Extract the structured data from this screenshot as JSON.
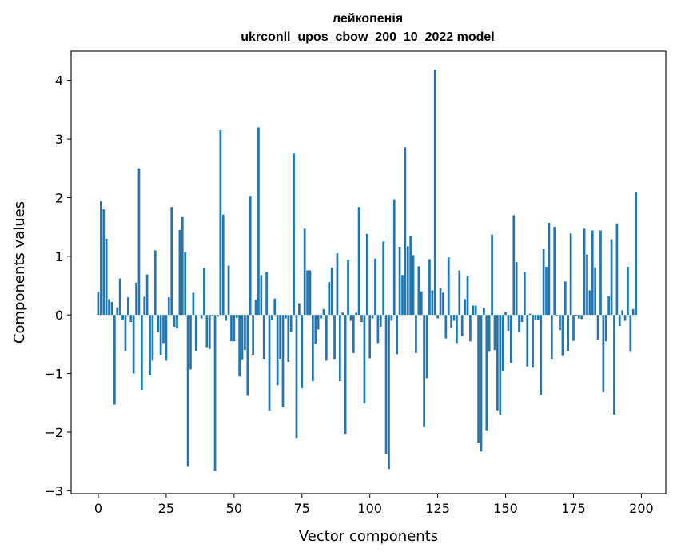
{
  "chart_data": {
    "type": "bar",
    "title_line1": "лейкопенія",
    "title_line2": "ukrconll_upos_cbow_200_10_2022 model",
    "xlabel": "Vector components",
    "ylabel": "Components values",
    "xlim": [
      -10,
      209
    ],
    "ylim": [
      -3.05,
      4.5
    ],
    "xticks": [
      0,
      25,
      50,
      75,
      100,
      125,
      150,
      175,
      200
    ],
    "xtick_labels": [
      "0",
      "25",
      "50",
      "75",
      "100",
      "125",
      "150",
      "175",
      "200"
    ],
    "yticks": [
      -3,
      -2,
      -1,
      0,
      1,
      2,
      3,
      4
    ],
    "ytick_labels": [
      "−3",
      "−2",
      "−1",
      "0",
      "1",
      "2",
      "3",
      "4"
    ],
    "bar_color": "#1f77b4",
    "values": [
      0.4,
      1.95,
      1.8,
      1.3,
      0.27,
      0.22,
      -1.53,
      0.13,
      0.62,
      -0.08,
      -0.62,
      0.3,
      -0.12,
      -1.0,
      0.55,
      2.5,
      -1.28,
      0.31,
      0.69,
      -1.03,
      -0.78,
      1.1,
      -0.3,
      -0.68,
      -0.48,
      -0.78,
      0.3,
      1.84,
      -0.2,
      -0.23,
      1.45,
      1.67,
      1.07,
      -2.58,
      -0.93,
      0.38,
      -0.62,
      0.0,
      -0.06,
      0.8,
      -0.55,
      -0.58,
      -0.02,
      -2.66,
      -0.03,
      3.15,
      1.71,
      -0.1,
      0.84,
      -0.45,
      -0.45,
      -0.05,
      -1.05,
      -0.77,
      -0.6,
      -1.38,
      2.03,
      -0.68,
      0.26,
      3.2,
      0.68,
      -0.76,
      0.73,
      -1.64,
      -0.08,
      0.28,
      -1.2,
      -0.76,
      -1.58,
      -0.06,
      -0.8,
      -0.29,
      2.75,
      -2.1,
      0.2,
      -1.25,
      1.47,
      0.76,
      0.76,
      -1.13,
      -0.49,
      -0.25,
      -0.06,
      0.1,
      -0.78,
      0.56,
      0.81,
      -0.76,
      1.05,
      -1.13,
      0.04,
      -2.03,
      0.94,
      -0.1,
      -0.65,
      0.04,
      1.84,
      -0.12,
      -1.51,
      1.38,
      -0.74,
      -0.06,
      0.96,
      -0.48,
      -0.2,
      1.25,
      -2.37,
      -2.63,
      -0.1,
      1.97,
      -0.67,
      1.16,
      0.68,
      2.86,
      1.17,
      1.34,
      1.02,
      -0.65,
      0.83,
      0.4,
      -1.91,
      -1.08,
      0.95,
      0.42,
      4.18,
      -0.06,
      0.46,
      0.38,
      -0.4,
      0.98,
      -0.22,
      -0.1,
      -0.48,
      0.76,
      -0.36,
      0.27,
      0.66,
      -0.45,
      0.16,
      0.16,
      -2.18,
      -2.33,
      0.12,
      -1.97,
      -0.63,
      1.37,
      -0.6,
      -1.63,
      -1.7,
      -0.95,
      0.05,
      -0.27,
      -0.82,
      1.7,
      0.9,
      -0.3,
      -0.12,
      0.73,
      -0.88,
      0.02,
      -0.9,
      -0.08,
      -0.08,
      -1.36,
      1.12,
      0.82,
      1.57,
      -0.76,
      1.5,
      -0.02,
      -0.26,
      -0.7,
      0.57,
      -0.61,
      1.39,
      -0.44,
      -0.02,
      -0.06,
      -0.07,
      1.47,
      1.03,
      0.42,
      1.44,
      0.81,
      -0.42,
      1.44,
      -1.32,
      -0.45,
      0.32,
      1.29,
      -1.7,
      1.56,
      -0.19,
      0.08,
      -0.1,
      0.82,
      -0.63,
      0.1,
      2.1
    ]
  }
}
